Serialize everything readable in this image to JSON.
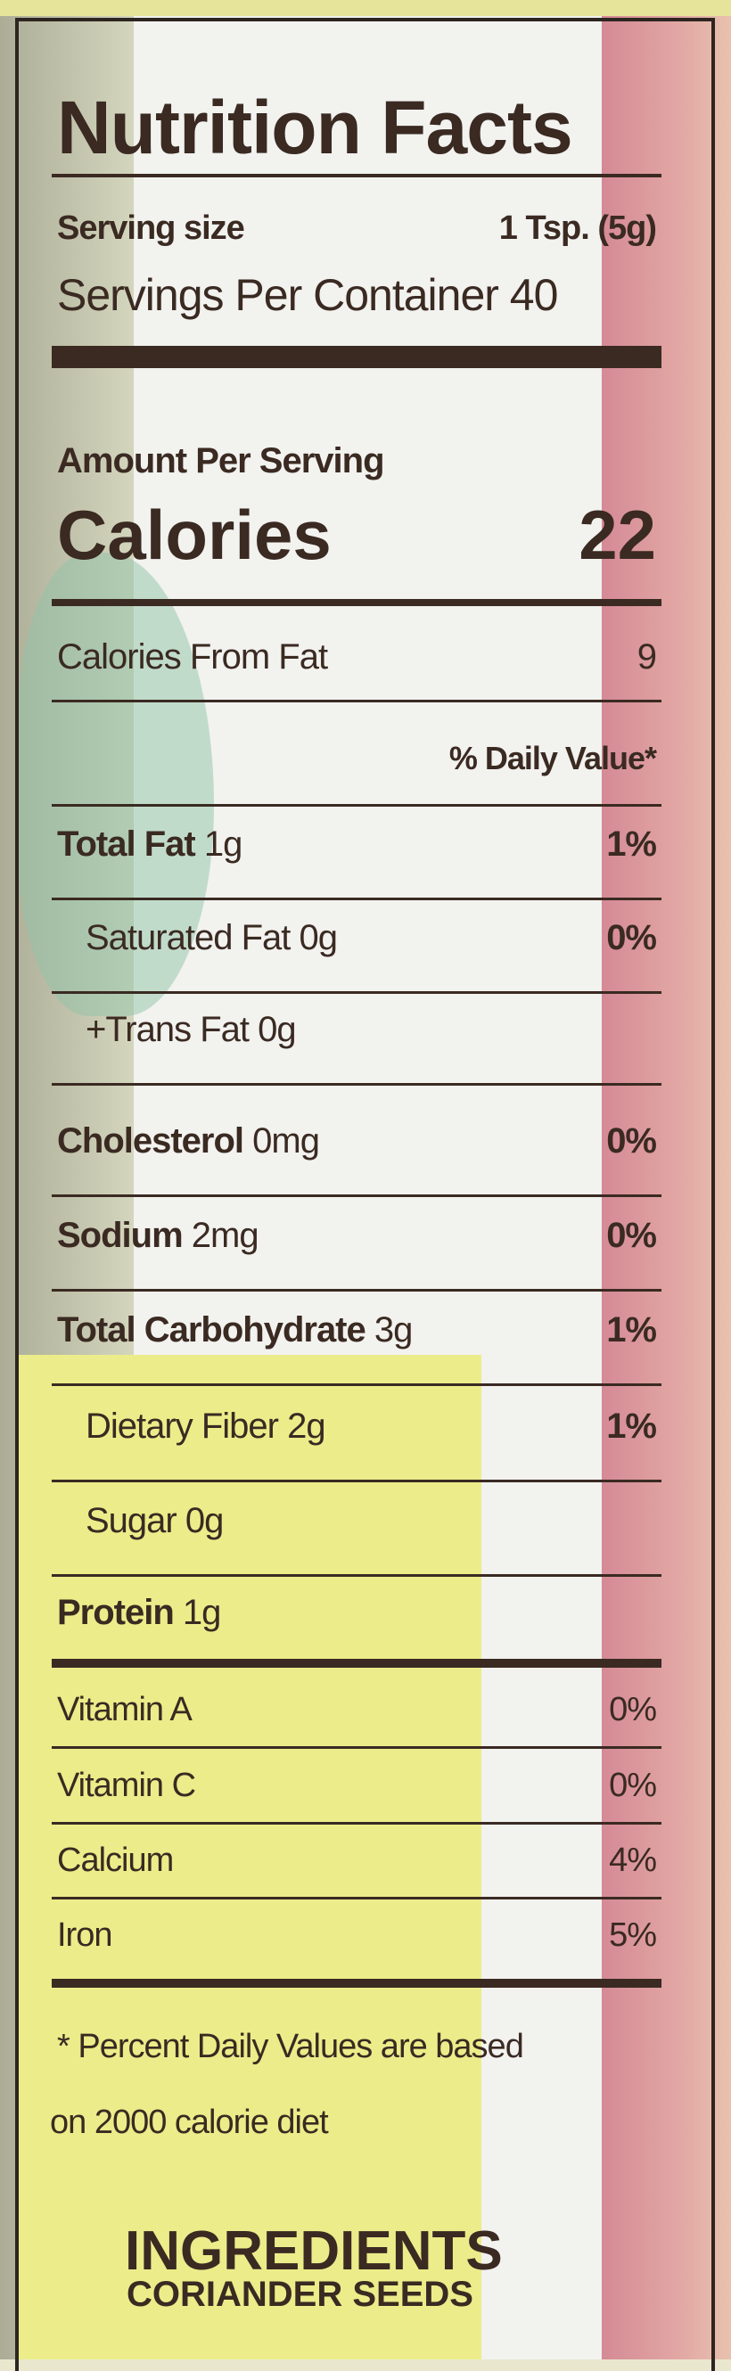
{
  "title": "Nutrition Facts",
  "serving_size": {
    "label": "Serving size",
    "value": "1 Tsp. (5g)"
  },
  "servings_per_container": "Servings Per Container 40",
  "amount_per_serving": "Amount Per Serving",
  "calories": {
    "label": "Calories",
    "value": "22"
  },
  "calories_from_fat": {
    "label": "Calories From Fat",
    "value": "9"
  },
  "daily_value_header": "% Daily Value*",
  "nutrients": [
    {
      "name": "Total Fat",
      "amount": "1g",
      "dv": "1%"
    },
    {
      "name": "Saturated Fat",
      "amount": "0g",
      "dv": "0%"
    },
    {
      "name": "+Trans Fat",
      "amount": "0g",
      "dv": ""
    },
    {
      "name": "Cholesterol",
      "amount": "0mg",
      "dv": "0%"
    },
    {
      "name": "Sodium",
      "amount": "2mg",
      "dv": "0%"
    },
    {
      "name": "Total Carbohydrate",
      "amount": "3g",
      "dv": "1%"
    },
    {
      "name": "Dietary Fiber",
      "amount": "2g",
      "dv": "1%"
    },
    {
      "name": "Sugar",
      "amount": "0g",
      "dv": ""
    },
    {
      "name": "Protein",
      "amount": "1g",
      "dv": ""
    }
  ],
  "vitamins": [
    {
      "name": "Vitamin A",
      "dv": "0%"
    },
    {
      "name": "Vitamin C",
      "dv": "0%"
    },
    {
      "name": "Calcium",
      "dv": "4%"
    },
    {
      "name": "Iron",
      "dv": "5%"
    }
  ],
  "footnote": {
    "line1": "* Percent Daily Values are based",
    "line2": "on 2000 calorie diet"
  },
  "ingredients": {
    "heading": "INGREDIENTS",
    "text": "CORIANDER SEEDS"
  },
  "colors": {
    "ink": "#3a2a22",
    "pink": "#d9929a",
    "yellow": "#ecec8a",
    "white": "#f4f4f2"
  }
}
